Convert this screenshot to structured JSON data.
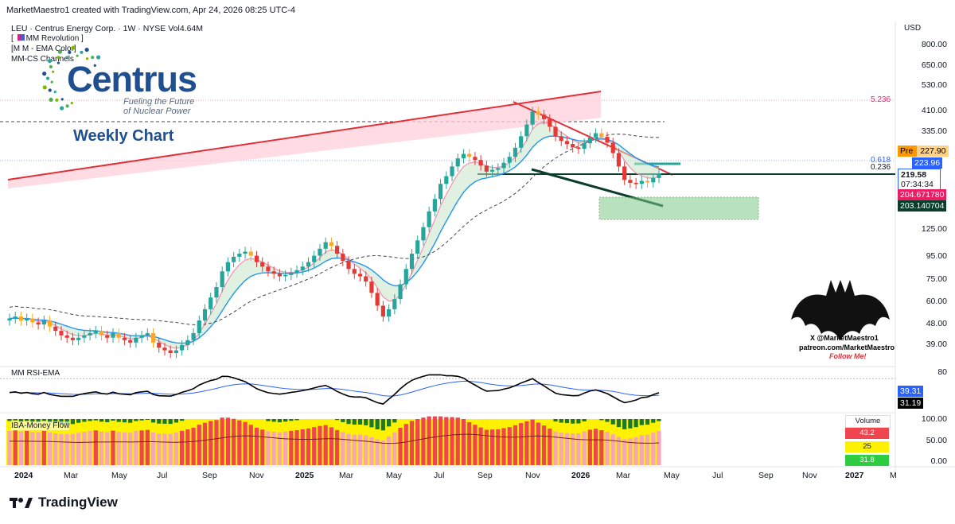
{
  "header": {
    "created_by": "MarketMaestro1 created with TradingView.com, Apr 24, 2026 08:25 UTC-4",
    "symbol_line": "LEU · Centrus Energy Corp. · 1W · NYSE  Vol4.64M"
  },
  "indicators": [
    "MM Revolution",
    "M M - EMA Color",
    "MM-CS Channels"
  ],
  "logo": {
    "name": "Centrus",
    "tagline1": "Fueling the Future",
    "tagline2": "of Nuclear Power"
  },
  "chart_title": "Weekly Chart",
  "watermark": {
    "line1": "X @MarketMaestro1",
    "line2": "patreon.com/MarketMaestro",
    "line3": "Follow Me!"
  },
  "currency": "USD",
  "colors": {
    "up": "#26a69a",
    "down": "#ef5350",
    "accent": "#2962ff",
    "trendline": "#e0303a",
    "support": "#0a3d2b"
  },
  "chart_data": [
    {
      "type": "candlestick",
      "title": "LEU · Centrus Energy Corp. · 1W · NYSE",
      "scale": "log",
      "y_ticks": [
        800,
        650,
        530,
        410,
        335,
        125,
        95,
        75,
        60,
        48,
        39
      ],
      "x_ticks": [
        "2024",
        "Mar",
        "May",
        "Jul",
        "Sep",
        "Nov",
        "2025",
        "Mar",
        "May",
        "Jul",
        "Sep",
        "Nov",
        "2026",
        "Mar",
        "May",
        "Jul",
        "Sep",
        "Nov",
        "2027",
        "M"
      ],
      "weekly_close_approx": [
        51,
        52,
        50,
        51,
        49,
        48,
        50,
        47,
        45,
        43,
        42,
        41,
        42,
        43,
        44,
        45,
        43,
        42,
        44,
        42,
        41,
        40,
        42,
        43,
        44,
        40,
        38,
        37,
        36,
        37,
        39,
        41,
        44,
        50,
        56,
        63,
        70,
        82,
        90,
        95,
        98,
        100,
        96,
        90,
        86,
        82,
        80,
        78,
        79,
        81,
        83,
        86,
        90,
        96,
        103,
        110,
        106,
        98,
        91,
        84,
        80,
        78,
        74,
        66,
        58,
        52,
        56,
        62,
        72,
        84,
        98,
        112,
        128,
        150,
        170,
        198,
        214,
        236,
        256,
        268,
        260,
        252,
        238,
        224,
        228,
        232,
        245,
        260,
        285,
        320,
        360,
        410,
        398,
        380,
        352,
        320,
        305,
        296,
        286,
        282,
        298,
        316,
        330,
        318,
        300,
        270,
        236,
        206,
        200,
        198,
        204,
        201,
        210,
        220
      ],
      "price_labels": [
        {
          "label": "Pre",
          "value": "227.90"
        },
        {
          "label": "",
          "value": "223.96"
        },
        {
          "label": "",
          "value": "219.58"
        },
        {
          "label": "countdown",
          "value": "07:34:34"
        },
        {
          "label": "",
          "value": "204.671780"
        },
        {
          "label": "",
          "value": "203.140704"
        }
      ],
      "annotations": [
        "5.236",
        "0.618",
        "0.236"
      ]
    },
    {
      "type": "line",
      "title": "MM RSI-EMA",
      "y_ticks": [
        80.0
      ],
      "series": [
        {
          "name": "RSI",
          "color": "#000000",
          "last": "31.19"
        },
        {
          "name": "EMA",
          "color": "#2962ff",
          "last": "39.31"
        }
      ]
    },
    {
      "type": "bar",
      "title": "IBA-Money Flow",
      "y_ticks": [
        "100.00",
        "50.00",
        "0.00"
      ],
      "legend": {
        "title": "Volume",
        "values": [
          "43.2",
          "25",
          "31.8"
        ]
      }
    }
  ],
  "footer": {
    "brand": "TradingView"
  }
}
